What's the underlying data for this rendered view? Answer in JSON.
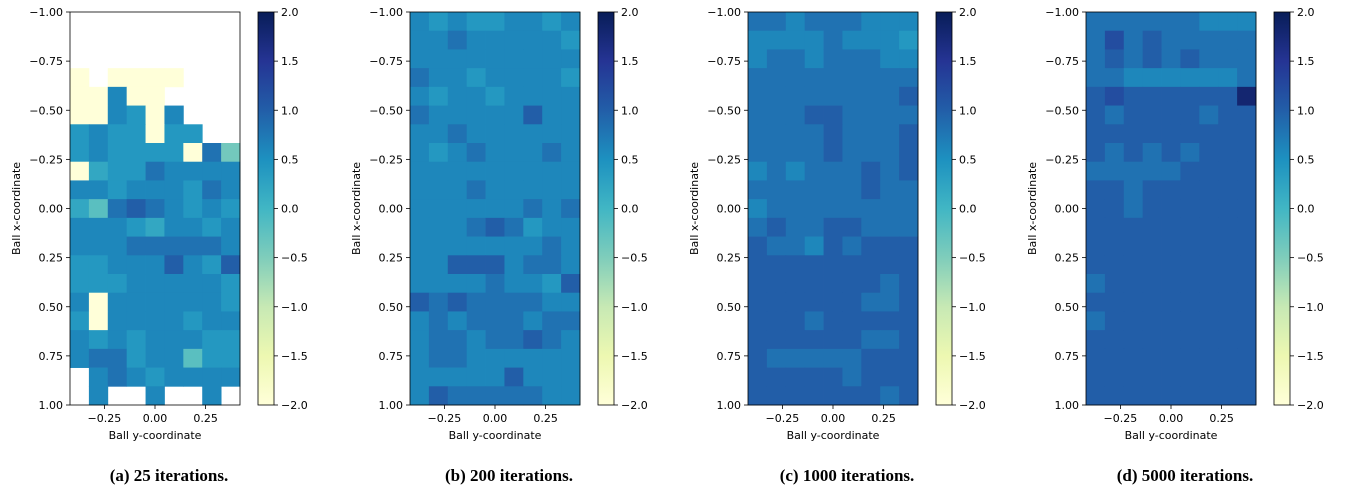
{
  "chart_data": [
    {
      "type": "heatmap",
      "caption": "(a) 25 iterations.",
      "xlabel": "Ball y-coordinate",
      "ylabel": "Ball x-coordinate",
      "x_ticks": [
        "−0.25",
        "0.00",
        "0.25"
      ],
      "x_tick_values": [
        -0.25,
        0.0,
        0.25
      ],
      "xlim": [
        -0.42,
        0.42
      ],
      "y_ticks": [
        "−1.00",
        "−0.75",
        "−0.50",
        "−0.25",
        "0.00",
        "0.25",
        "0.50",
        "0.75",
        "1.00"
      ],
      "y_tick_values": [
        -1.0,
        -0.75,
        -0.5,
        -0.25,
        0.0,
        0.25,
        0.5,
        0.75,
        1.0
      ],
      "ylim": [
        -1.0,
        1.0
      ],
      "colorbar": {
        "ticks": [
          "2.0",
          "1.5",
          "1.0",
          "0.5",
          "0.0",
          "−0.5",
          "−1.0",
          "−1.5",
          "−2.0"
        ],
        "range": [
          -2.0,
          2.0
        ],
        "colormap": "YlGnBu"
      },
      "grid": false,
      "values": [
        [
          null,
          null,
          null,
          null,
          null,
          null,
          null,
          null,
          null
        ],
        [
          null,
          null,
          null,
          null,
          null,
          null,
          null,
          null,
          null
        ],
        [
          null,
          null,
          null,
          null,
          null,
          null,
          null,
          null,
          null
        ],
        [
          -2,
          null,
          -2,
          -2,
          -2,
          -2,
          null,
          null,
          null
        ],
        [
          -2,
          -2,
          0.6,
          -2,
          -2,
          null,
          null,
          null,
          null
        ],
        [
          -2,
          -2,
          0.6,
          0.4,
          -2,
          0.6,
          null,
          null,
          null
        ],
        [
          0.4,
          0.6,
          0.4,
          0.4,
          -2,
          0.4,
          0.4,
          null,
          null
        ],
        [
          0.4,
          0.6,
          0.4,
          0.4,
          0.4,
          0.4,
          -2,
          0.8,
          -0.4
        ],
        [
          -2,
          0.2,
          0.4,
          0.4,
          0.8,
          0.6,
          0.6,
          0.6,
          0.6
        ],
        [
          0.6,
          0.6,
          0.4,
          0.6,
          0.6,
          0.6,
          0.4,
          0.8,
          0.6
        ],
        [
          0.2,
          -0.2,
          0.8,
          1.0,
          0.8,
          0.6,
          0.4,
          0.6,
          0.4
        ],
        [
          0.6,
          0.6,
          0.6,
          0.4,
          0.2,
          0.6,
          0.6,
          0.4,
          0.6
        ],
        [
          0.6,
          0.6,
          0.6,
          0.8,
          0.8,
          0.8,
          0.8,
          0.8,
          0.6
        ],
        [
          0.4,
          0.4,
          0.6,
          0.6,
          0.6,
          1.0,
          0.6,
          0.4,
          1.0
        ],
        [
          0.4,
          0.4,
          0.4,
          0.6,
          0.6,
          0.6,
          0.6,
          0.6,
          0.4
        ],
        [
          0.6,
          -2,
          0.6,
          0.6,
          0.6,
          0.6,
          0.6,
          0.6,
          0.4
        ],
        [
          0.4,
          -2,
          0.6,
          0.6,
          0.6,
          0.6,
          0.4,
          0.6,
          0.6
        ],
        [
          0.6,
          0.4,
          0.6,
          0.4,
          0.6,
          0.6,
          0.6,
          0.4,
          0.4
        ],
        [
          0.6,
          0.8,
          0.8,
          0.4,
          0.6,
          0.6,
          -0.2,
          0.4,
          0.4
        ],
        [
          null,
          0.6,
          0.8,
          0.6,
          0.4,
          0.6,
          0.6,
          0.6,
          0.6
        ],
        [
          null,
          0.6,
          null,
          null,
          0.6,
          null,
          null,
          0.6,
          null
        ]
      ]
    },
    {
      "type": "heatmap",
      "caption": "(b) 200 iterations.",
      "xlabel": "Ball y-coordinate",
      "ylabel": "Ball x-coordinate",
      "x_ticks": [
        "−0.25",
        "0.00",
        "0.25"
      ],
      "x_tick_values": [
        -0.25,
        0.0,
        0.25
      ],
      "xlim": [
        -0.42,
        0.42
      ],
      "y_ticks": [
        "−1.00",
        "−0.75",
        "−0.50",
        "−0.25",
        "0.00",
        "0.25",
        "0.50",
        "0.75",
        "1.00"
      ],
      "y_tick_values": [
        -1.0,
        -0.75,
        -0.5,
        -0.25,
        0.0,
        0.25,
        0.5,
        0.75,
        1.0
      ],
      "ylim": [
        -1.0,
        1.0
      ],
      "colorbar": {
        "ticks": [
          "2.0",
          "1.5",
          "1.0",
          "0.5",
          "0.0",
          "−0.5",
          "−1.0",
          "−1.5",
          "−2.0"
        ],
        "range": [
          -2.0,
          2.0
        ],
        "colormap": "YlGnBu"
      },
      "grid": false,
      "values": [
        [
          0.6,
          0.4,
          0.6,
          0.4,
          0.4,
          0.6,
          0.6,
          0.4,
          0.6
        ],
        [
          0.6,
          0.6,
          0.8,
          0.6,
          0.6,
          0.6,
          0.6,
          0.6,
          0.4
        ],
        [
          0.6,
          0.6,
          0.6,
          0.6,
          0.6,
          0.6,
          0.6,
          0.6,
          0.6
        ],
        [
          0.8,
          0.6,
          0.6,
          0.4,
          0.6,
          0.6,
          0.6,
          0.6,
          0.4
        ],
        [
          0.6,
          0.4,
          0.6,
          0.6,
          0.4,
          0.6,
          0.6,
          0.6,
          0.6
        ],
        [
          0.8,
          0.6,
          0.6,
          0.6,
          0.6,
          0.6,
          1.0,
          0.6,
          0.6
        ],
        [
          0.6,
          0.6,
          0.8,
          0.6,
          0.6,
          0.6,
          0.6,
          0.6,
          0.6
        ],
        [
          0.6,
          0.4,
          0.6,
          0.8,
          0.6,
          0.6,
          0.6,
          0.8,
          0.6
        ],
        [
          0.6,
          0.6,
          0.6,
          0.6,
          0.6,
          0.6,
          0.6,
          0.6,
          0.6
        ],
        [
          0.6,
          0.6,
          0.6,
          0.8,
          0.6,
          0.6,
          0.6,
          0.6,
          0.6
        ],
        [
          0.6,
          0.6,
          0.6,
          0.6,
          0.6,
          0.6,
          0.8,
          0.6,
          0.8
        ],
        [
          0.6,
          0.6,
          0.6,
          0.8,
          1.0,
          0.8,
          0.4,
          0.6,
          0.6
        ],
        [
          0.6,
          0.6,
          0.6,
          0.6,
          0.6,
          0.6,
          0.6,
          0.8,
          0.6
        ],
        [
          0.6,
          0.6,
          1.0,
          1.0,
          1.0,
          0.6,
          0.8,
          0.8,
          0.6
        ],
        [
          0.6,
          0.6,
          0.6,
          0.6,
          0.8,
          0.6,
          0.6,
          0.4,
          1.0
        ],
        [
          1.0,
          0.8,
          1.0,
          0.8,
          0.8,
          0.8,
          0.8,
          0.6,
          0.6
        ],
        [
          0.6,
          0.8,
          0.6,
          0.8,
          0.8,
          0.8,
          0.6,
          0.8,
          0.8
        ],
        [
          0.6,
          0.8,
          0.8,
          0.6,
          0.8,
          0.8,
          1.0,
          0.8,
          0.6
        ],
        [
          0.6,
          0.8,
          0.8,
          0.6,
          0.6,
          0.6,
          0.6,
          0.6,
          0.6
        ],
        [
          0.6,
          0.6,
          0.6,
          0.6,
          0.6,
          1.0,
          0.6,
          0.6,
          0.6
        ],
        [
          0.6,
          1.0,
          0.8,
          0.8,
          0.8,
          0.8,
          0.8,
          0.6,
          0.6
        ]
      ]
    },
    {
      "type": "heatmap",
      "caption": "(c) 1000 iterations.",
      "xlabel": "Ball y-coordinate",
      "ylabel": "Ball x-coordinate",
      "x_ticks": [
        "−0.25",
        "0.00",
        "0.25"
      ],
      "x_tick_values": [
        -0.25,
        0.0,
        0.25
      ],
      "xlim": [
        -0.42,
        0.42
      ],
      "y_ticks": [
        "−1.00",
        "−0.75",
        "−0.50",
        "−0.25",
        "0.00",
        "0.25",
        "0.50",
        "0.75",
        "1.00"
      ],
      "y_tick_values": [
        -1.0,
        -0.75,
        -0.5,
        -0.25,
        0.0,
        0.25,
        0.5,
        0.75,
        1.0
      ],
      "ylim": [
        -1.0,
        1.0
      ],
      "colorbar": {
        "ticks": [
          "2.0",
          "1.5",
          "1.0",
          "0.5",
          "0.0",
          "−0.5",
          "−1.0",
          "−1.5",
          "−2.0"
        ],
        "range": [
          -2.0,
          2.0
        ],
        "colormap": "YlGnBu"
      },
      "grid": false,
      "values": [
        [
          0.8,
          0.8,
          0.6,
          0.8,
          0.8,
          0.8,
          0.6,
          0.6,
          0.6
        ],
        [
          0.6,
          0.6,
          0.6,
          0.6,
          0.8,
          0.6,
          0.6,
          0.6,
          0.4
        ],
        [
          0.6,
          0.8,
          0.8,
          0.6,
          0.8,
          0.8,
          0.8,
          0.6,
          0.6
        ],
        [
          0.8,
          0.8,
          0.8,
          0.8,
          0.8,
          0.8,
          0.8,
          0.8,
          0.8
        ],
        [
          0.8,
          0.8,
          0.8,
          0.8,
          0.8,
          0.8,
          0.8,
          0.8,
          1.0
        ],
        [
          0.8,
          0.8,
          0.8,
          1.0,
          1.0,
          0.8,
          0.8,
          0.8,
          0.8
        ],
        [
          0.8,
          0.8,
          0.8,
          0.8,
          1.0,
          0.8,
          0.8,
          0.8,
          1.0
        ],
        [
          0.8,
          0.8,
          0.8,
          0.8,
          1.0,
          0.8,
          0.8,
          0.8,
          1.0
        ],
        [
          0.6,
          0.8,
          0.6,
          0.8,
          0.8,
          0.8,
          1.0,
          0.8,
          1.0
        ],
        [
          0.8,
          0.8,
          0.8,
          0.8,
          0.8,
          0.8,
          1.0,
          0.8,
          0.8
        ],
        [
          0.6,
          0.8,
          0.8,
          0.8,
          0.8,
          0.8,
          0.8,
          0.8,
          0.8
        ],
        [
          0.8,
          1.0,
          0.8,
          0.8,
          1.0,
          1.0,
          0.8,
          0.8,
          0.8
        ],
        [
          1.0,
          0.8,
          0.8,
          0.6,
          1.0,
          0.8,
          1.0,
          1.0,
          1.0
        ],
        [
          1.0,
          1.0,
          1.0,
          1.0,
          1.0,
          1.0,
          1.0,
          1.0,
          1.0
        ],
        [
          1.0,
          1.0,
          1.0,
          1.0,
          1.0,
          1.0,
          1.0,
          0.8,
          1.0
        ],
        [
          1.0,
          1.0,
          1.0,
          1.0,
          1.0,
          1.0,
          0.8,
          0.8,
          1.0
        ],
        [
          1.0,
          1.0,
          1.0,
          0.8,
          1.0,
          1.0,
          1.0,
          1.0,
          1.0
        ],
        [
          1.0,
          1.0,
          1.0,
          1.0,
          1.0,
          1.0,
          0.8,
          0.8,
          1.0
        ],
        [
          1.0,
          0.8,
          0.8,
          0.8,
          0.8,
          0.8,
          1.0,
          1.0,
          1.0
        ],
        [
          1.0,
          1.0,
          1.0,
          1.0,
          1.0,
          0.8,
          1.0,
          1.0,
          1.0
        ],
        [
          1.0,
          1.0,
          1.0,
          1.0,
          1.0,
          1.0,
          1.0,
          0.8,
          1.0
        ]
      ]
    },
    {
      "type": "heatmap",
      "caption": "(d) 5000 iterations.",
      "xlabel": "Ball y-coordinate",
      "ylabel": "Ball x-coordinate",
      "x_ticks": [
        "−0.25",
        "0.00",
        "0.25"
      ],
      "x_tick_values": [
        -0.25,
        0.0,
        0.25
      ],
      "xlim": [
        -0.42,
        0.42
      ],
      "y_ticks": [
        "−1.00",
        "−0.75",
        "−0.50",
        "−0.25",
        "0.00",
        "0.25",
        "0.50",
        "0.75",
        "1.00"
      ],
      "y_tick_values": [
        -1.0,
        -0.75,
        -0.5,
        -0.25,
        0.0,
        0.25,
        0.5,
        0.75,
        1.0
      ],
      "ylim": [
        -1.0,
        1.0
      ],
      "colorbar": {
        "ticks": [
          "2.0",
          "1.5",
          "1.0",
          "0.5",
          "0.0",
          "−0.5",
          "−1.0",
          "−1.5",
          "−2.0"
        ],
        "range": [
          -2.0,
          2.0
        ],
        "colormap": "YlGnBu"
      },
      "grid": false,
      "values": [
        [
          0.8,
          0.8,
          0.8,
          0.8,
          0.8,
          0.8,
          0.6,
          0.6,
          0.6
        ],
        [
          0.8,
          1.2,
          0.8,
          1.0,
          0.8,
          0.8,
          0.8,
          0.8,
          0.8
        ],
        [
          0.8,
          1.0,
          0.8,
          1.0,
          0.8,
          1.0,
          0.8,
          0.8,
          0.8
        ],
        [
          0.8,
          0.8,
          0.6,
          0.6,
          0.6,
          0.6,
          0.6,
          0.6,
          0.8
        ],
        [
          1.0,
          1.2,
          1.0,
          1.0,
          1.0,
          1.0,
          1.0,
          1.0,
          1.8
        ],
        [
          1.0,
          0.8,
          1.0,
          1.0,
          1.0,
          1.0,
          0.8,
          1.0,
          1.0
        ],
        [
          1.0,
          1.0,
          1.0,
          1.0,
          1.0,
          1.0,
          1.0,
          1.0,
          1.0
        ],
        [
          1.0,
          0.8,
          1.0,
          0.8,
          1.0,
          0.8,
          1.0,
          1.0,
          1.0
        ],
        [
          0.8,
          0.8,
          0.8,
          0.8,
          0.8,
          1.0,
          1.0,
          1.0,
          1.0
        ],
        [
          1.0,
          1.0,
          0.8,
          1.0,
          1.0,
          1.0,
          1.0,
          1.0,
          1.0
        ],
        [
          1.0,
          1.0,
          0.8,
          1.0,
          1.0,
          1.0,
          1.0,
          1.0,
          1.0
        ],
        [
          1.0,
          1.0,
          1.0,
          1.0,
          1.0,
          1.0,
          1.0,
          1.0,
          1.0
        ],
        [
          1.0,
          1.0,
          1.0,
          1.0,
          1.0,
          1.0,
          1.0,
          1.0,
          1.0
        ],
        [
          1.0,
          1.0,
          1.0,
          1.0,
          1.0,
          1.0,
          1.0,
          1.0,
          1.0
        ],
        [
          0.8,
          1.0,
          1.0,
          1.0,
          1.0,
          1.0,
          1.0,
          1.0,
          1.0
        ],
        [
          1.0,
          1.0,
          1.0,
          1.0,
          1.0,
          1.0,
          1.0,
          1.0,
          1.0
        ],
        [
          0.8,
          1.0,
          1.0,
          1.0,
          1.0,
          1.0,
          1.0,
          1.0,
          1.0
        ],
        [
          1.0,
          1.0,
          1.0,
          1.0,
          1.0,
          1.0,
          1.0,
          1.0,
          1.0
        ],
        [
          1.0,
          1.0,
          1.0,
          1.0,
          1.0,
          1.0,
          1.0,
          1.0,
          1.0
        ],
        [
          1.0,
          1.0,
          1.0,
          1.0,
          1.0,
          1.0,
          1.0,
          1.0,
          1.0
        ],
        [
          1.0,
          1.0,
          1.0,
          1.0,
          1.0,
          1.0,
          1.0,
          1.0,
          1.0
        ]
      ]
    }
  ]
}
